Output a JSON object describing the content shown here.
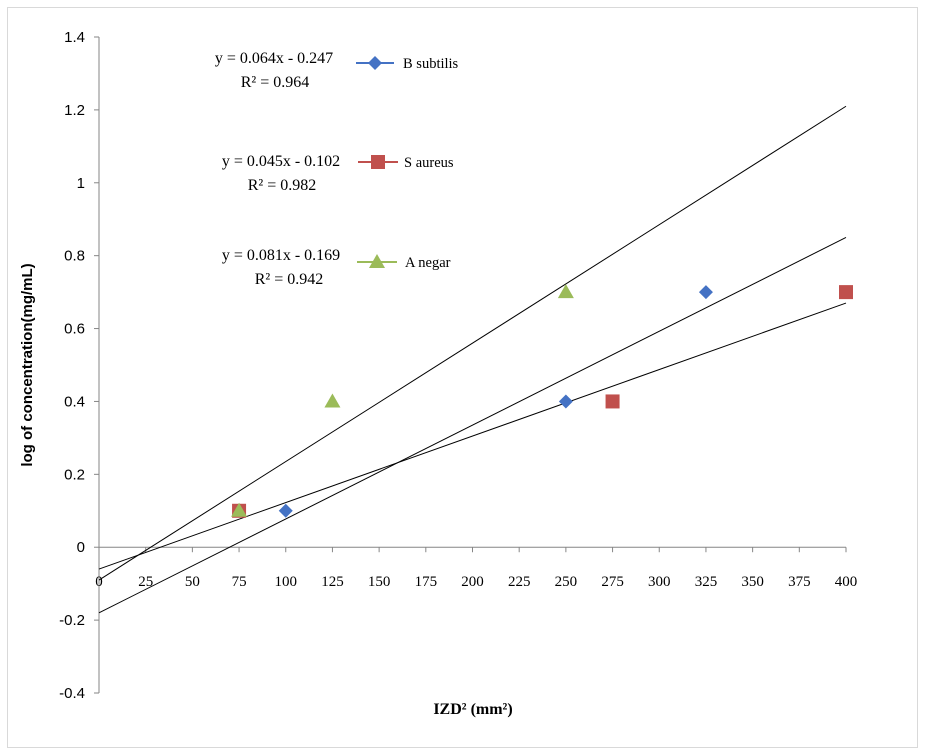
{
  "chart_data": {
    "type": "scatter",
    "xlabel": "IZD² (mm²)",
    "ylabel": "log of concentration(mg/mL)",
    "xlim": [
      0,
      400
    ],
    "ylim": [
      -0.4,
      1.4
    ],
    "xticks": [
      "0",
      "25",
      "50",
      "75",
      "100",
      "125",
      "150",
      "175",
      "200",
      "225",
      "250",
      "275",
      "300",
      "325",
      "350",
      "375",
      "400"
    ],
    "yticks": [
      "-0.4",
      "-0.2",
      "0",
      "0.2",
      "0.4",
      "0.6",
      "0.8",
      "1",
      "1.2",
      "1.4"
    ],
    "grid": false,
    "legend_placement": "top-left",
    "series": [
      {
        "name": "B subtilis",
        "marker": "diamond",
        "color": "#4472C4",
        "x": [
          100,
          250,
          325
        ],
        "y": [
          0.1,
          0.4,
          0.7
        ],
        "trendline": {
          "equation": "y = 0.064x - 0.247",
          "r2": "R² = 0.964",
          "from": [
            0,
            -0.06
          ],
          "to": [
            400,
            0.67
          ]
        }
      },
      {
        "name": "S aureus",
        "marker": "square",
        "color": "#C0504D",
        "x": [
          75,
          275,
          400
        ],
        "y": [
          0.1,
          0.4,
          0.7
        ],
        "trendline": {
          "equation": "y = 0.045x - 0.102",
          "r2": "R² = 0.982",
          "from": [
            0,
            -0.18
          ],
          "to": [
            400,
            0.85
          ]
        }
      },
      {
        "name": "A negar",
        "marker": "triangle",
        "color": "#9BBB59",
        "x": [
          75,
          125,
          250
        ],
        "y": [
          0.1,
          0.4,
          0.7
        ],
        "trendline": {
          "equation": "y = 0.081x - 0.169",
          "r2": "R² = 0.942",
          "from": [
            0,
            -0.09
          ],
          "to": [
            400,
            1.21
          ]
        }
      }
    ]
  }
}
